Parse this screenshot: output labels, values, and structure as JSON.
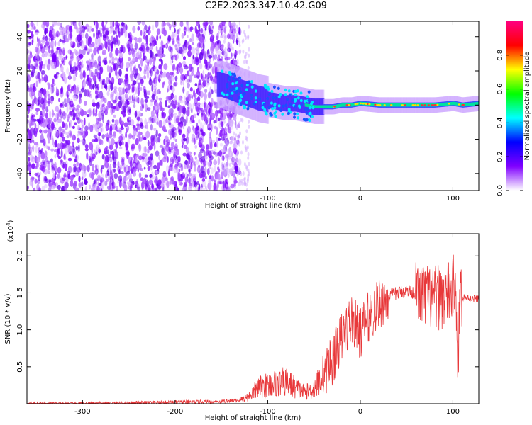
{
  "title": "C2E2.2023.347.10.42.G09",
  "chart_data": [
    {
      "type": "heatmap",
      "xlabel": "Height of straight line (km)",
      "ylabel": "Frequency (Hz)",
      "xlim": [
        -360,
        128
      ],
      "ylim": [
        -50,
        49
      ],
      "xticks": [
        -300,
        -200,
        -100,
        0,
        100
      ],
      "xtick_labels": [
        "-300",
        "-200",
        "-100",
        "0",
        "100"
      ],
      "yticks": [
        -40,
        -20,
        0,
        20,
        40
      ],
      "ytick_labels": [
        "-40",
        "-20",
        "0",
        "20",
        "40"
      ],
      "colorbar": {
        "label": "Normalized spectral amplitude",
        "range": [
          0.0,
          1.0
        ],
        "ticks": [
          0.0,
          0.2,
          0.4,
          0.6,
          0.8
        ],
        "tick_labels": [
          "0.0",
          "0.2",
          "0.4",
          "0.6",
          "0.8"
        ],
        "colors": [
          "#ffffff",
          "#8000ff",
          "#0000ff",
          "#00ffff",
          "#00ff00",
          "#ffff00",
          "#ff0000",
          "#ff0080"
        ]
      },
      "ridge": {
        "x": [
          -150,
          -140,
          -130,
          -120,
          -110,
          -100,
          -90,
          -80,
          -70,
          -60,
          -50,
          -40,
          -30,
          -20,
          -10,
          0,
          20,
          40,
          60,
          80,
          100,
          110,
          128
        ],
        "y": [
          12,
          10,
          8,
          6,
          4,
          3,
          2,
          1,
          1,
          0,
          -1,
          -1,
          -1,
          0,
          0,
          1,
          0,
          0,
          0,
          0,
          1,
          0,
          1
        ]
      }
    },
    {
      "type": "line",
      "xlabel": "Height of straight line (km)",
      "ylabel": "SNR (10 * v/v)",
      "y_scale_label": "(x10",
      "y_scale_exponent": "4",
      "xlim": [
        -360,
        128
      ],
      "ylim": [
        0,
        23000
      ],
      "xticks": [
        -300,
        -200,
        -100,
        0,
        100
      ],
      "xtick_labels": [
        "-300",
        "-200",
        "-100",
        "0",
        "100"
      ],
      "yticks": [
        5000,
        10000,
        15000,
        20000
      ],
      "ytick_labels": [
        "0.5",
        "1.0",
        "1.5",
        "2.0"
      ],
      "color": "#e8383a",
      "series": [
        {
          "x": [
            -360,
            -300,
            -250,
            -200,
            -150,
            -130,
            -120,
            -110,
            -100,
            -90,
            -80,
            -70,
            -60,
            -50,
            -40,
            -30,
            -20,
            -10,
            0,
            5,
            10,
            15,
            20,
            25,
            30,
            40,
            50,
            60,
            70,
            80,
            90,
            100,
            103,
            105,
            108,
            110,
            115,
            128
          ],
          "y": [
            0,
            0,
            100,
            200,
            300,
            500,
            1000,
            2200,
            2500,
            2800,
            3000,
            2200,
            1500,
            2000,
            4000,
            6000,
            9000,
            11500,
            9500,
            11000,
            12000,
            12500,
            13500,
            14000,
            14500,
            15000,
            15300,
            15000,
            14500,
            14200,
            14600,
            15200,
            18000,
            3000,
            16000,
            14500,
            14300,
            14200
          ]
        }
      ]
    }
  ]
}
